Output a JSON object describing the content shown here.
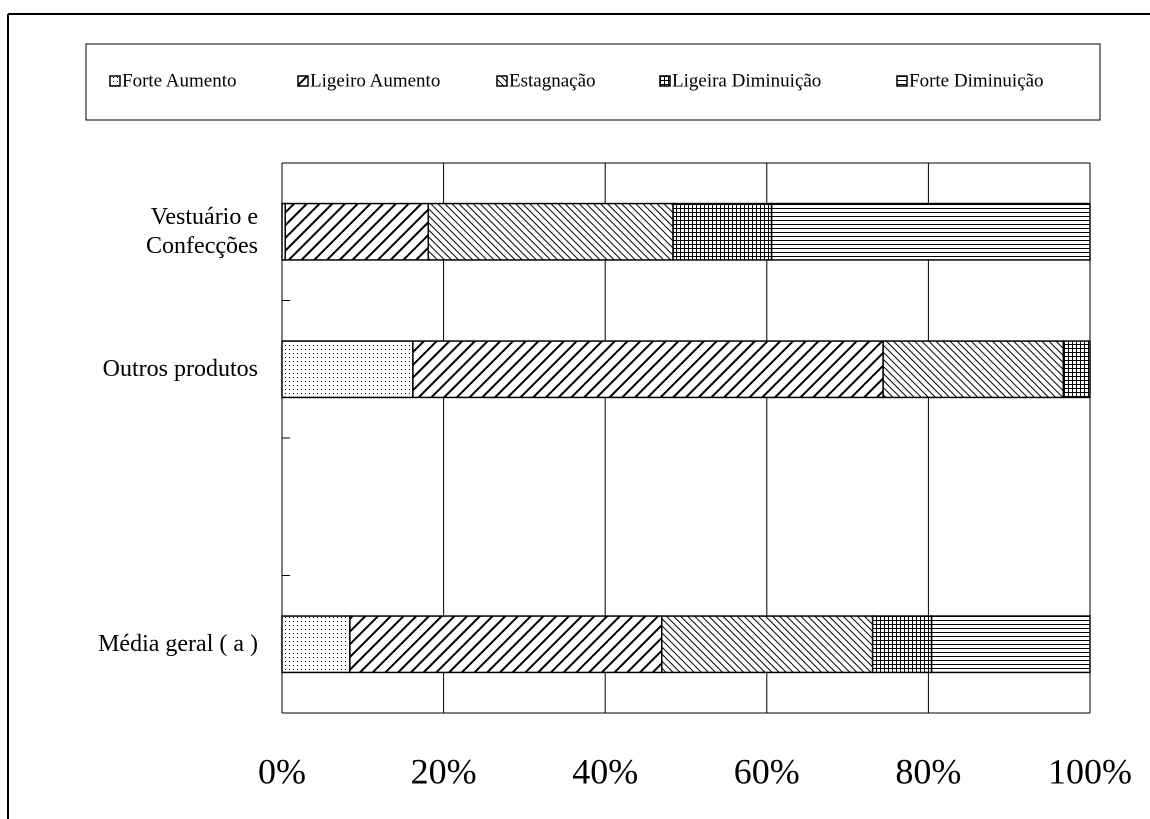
{
  "chart_data": {
    "type": "stacked-bar-horizontal",
    "categories": [
      "Vestuário e Confecções",
      "Outros produtos",
      null,
      "Média geral ( a )"
    ],
    "series": [
      {
        "name": "Forte Aumento",
        "color": "#000000",
        "pattern": "dots",
        "values": [
          0.4,
          16.2,
          null,
          8.4
        ]
      },
      {
        "name": "Ligeiro Aumento",
        "color": "#000000",
        "pattern": "diagonal",
        "values": [
          17.7,
          58.2,
          null,
          38.6
        ]
      },
      {
        "name": "Estagnação",
        "color": "#000000",
        "pattern": "fine-diagonal",
        "values": [
          30.3,
          22.3,
          null,
          26.1
        ]
      },
      {
        "name": "Ligeira Diminuição",
        "color": "#000000",
        "pattern": "grid",
        "values": [
          12.2,
          3.3,
          null,
          7.3
        ]
      },
      {
        "name": "Forte Diminuição",
        "color": "#000000",
        "pattern": "horizontal",
        "values": [
          39.4,
          0,
          null,
          19.6
        ]
      }
    ],
    "xlim": [
      0,
      100
    ],
    "xticks": [
      {
        "value": 0,
        "label": "0%"
      },
      {
        "value": 20,
        "label": "20%"
      },
      {
        "value": 40,
        "label": "40%"
      },
      {
        "value": 60,
        "label": "60%"
      },
      {
        "value": 80,
        "label": "80%"
      },
      {
        "value": 100,
        "label": "100%"
      }
    ],
    "grid": true,
    "legend": "top"
  }
}
